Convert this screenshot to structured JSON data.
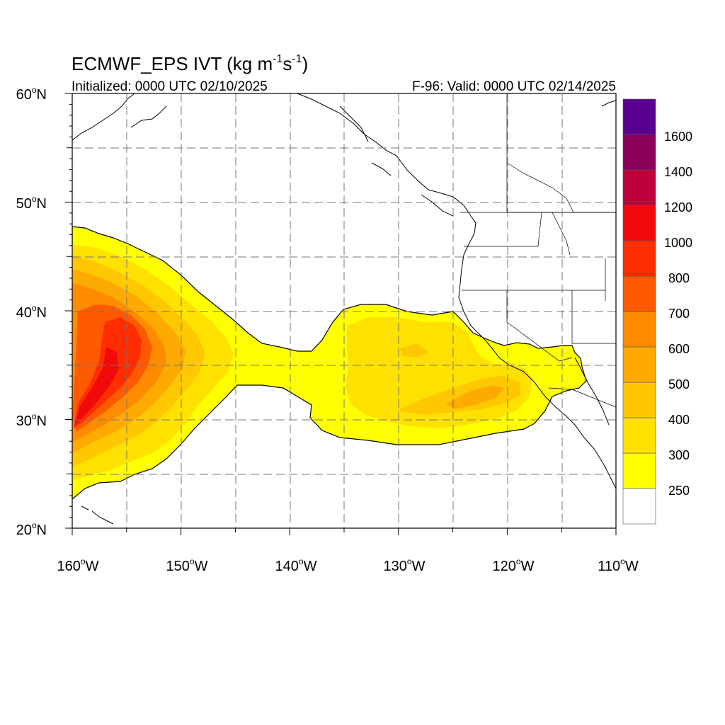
{
  "title": {
    "main": "ECMWF_EPS IVT (kg m",
    "exp1": "-1",
    "mid": "s",
    "exp2": "-1",
    "tail": ")"
  },
  "subtitle_left": "Initialized: 0000 UTC 02/10/2025",
  "subtitle_right": "F-96: Valid: 0000 UTC 02/14/2025",
  "map": {
    "lon_range": [
      -160,
      -110
    ],
    "lat_range": [
      20,
      60
    ],
    "gridlines": "dashed",
    "x_ticks": [
      {
        "value": -160,
        "label": "160",
        "suffix": "W"
      },
      {
        "value": -150,
        "label": "150",
        "suffix": "W"
      },
      {
        "value": -140,
        "label": "140",
        "suffix": "W"
      },
      {
        "value": -130,
        "label": "130",
        "suffix": "W"
      },
      {
        "value": -120,
        "label": "120",
        "suffix": "W"
      },
      {
        "value": -110,
        "label": "110",
        "suffix": "W"
      }
    ],
    "y_ticks": [
      {
        "value": 60,
        "label": "60",
        "suffix": "N"
      },
      {
        "value": 50,
        "label": "50",
        "suffix": "N"
      },
      {
        "value": 40,
        "label": "40",
        "suffix": "N"
      },
      {
        "value": 30,
        "label": "30",
        "suffix": "N"
      },
      {
        "value": 20,
        "label": "20",
        "suffix": "N"
      }
    ]
  },
  "colorbar": {
    "levels": [
      250,
      300,
      400,
      500,
      600,
      700,
      800,
      1000,
      1200,
      1400,
      1600
    ],
    "labels": [
      "250",
      "300",
      "400",
      "500",
      "600",
      "700",
      "800",
      "1000",
      "1200",
      "1400",
      "1600"
    ],
    "colors": [
      "#ffffff",
      "#ffff00",
      "#ffe100",
      "#ffc800",
      "#ffaa00",
      "#ff8c00",
      "#ff5a00",
      "#ff2d00",
      "#f00a0a",
      "#c0003c",
      "#8b005a",
      "#5a0090"
    ]
  },
  "features": {
    "ivt_plume_colors": [
      "#ffff00",
      "#ffe100",
      "#ffc800",
      "#ffaa00",
      "#ff8c00",
      "#ff5a00",
      "#ff2d00",
      "#f00a0a"
    ]
  }
}
